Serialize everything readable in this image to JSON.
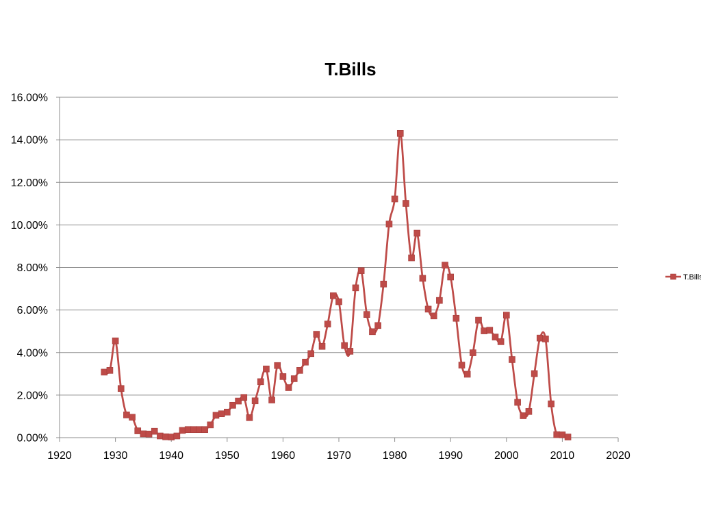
{
  "chart_data": {
    "type": "line",
    "title": "T.Bills",
    "xlabel": "",
    "ylabel": "",
    "xlim": [
      1920,
      2020
    ],
    "ylim": [
      0,
      16
    ],
    "x_ticks": [
      "1920",
      "1930",
      "1940",
      "1950",
      "1960",
      "1970",
      "1980",
      "1990",
      "2000",
      "2010",
      "2020"
    ],
    "y_ticks": [
      "0.00%",
      "2.00%",
      "4.00%",
      "6.00%",
      "8.00%",
      "10.00%",
      "12.00%",
      "14.00%",
      "16.00%"
    ],
    "grid": "horizontal",
    "legend": {
      "position": "right",
      "entries": [
        "T.Bills"
      ]
    },
    "series": [
      {
        "name": "T.Bills",
        "color": "#be4b48",
        "x": [
          1928,
          1929,
          1930,
          1931,
          1932,
          1933,
          1934,
          1935,
          1936,
          1937,
          1938,
          1939,
          1940,
          1941,
          1942,
          1943,
          1944,
          1945,
          1946,
          1947,
          1948,
          1949,
          1950,
          1951,
          1952,
          1953,
          1954,
          1955,
          1956,
          1957,
          1958,
          1959,
          1960,
          1961,
          1962,
          1963,
          1964,
          1965,
          1966,
          1967,
          1968,
          1969,
          1970,
          1971,
          1972,
          1973,
          1974,
          1975,
          1976,
          1977,
          1978,
          1979,
          1980,
          1981,
          1982,
          1983,
          1984,
          1985,
          1986,
          1987,
          1988,
          1989,
          1990,
          1991,
          1992,
          1993,
          1994,
          1995,
          1996,
          1997,
          1998,
          1999,
          2000,
          2001,
          2002,
          2003,
          2004,
          2005,
          2006,
          2007,
          2008,
          2009,
          2010,
          2011
        ],
        "values": [
          3.08,
          3.16,
          4.55,
          2.31,
          1.07,
          0.96,
          0.32,
          0.18,
          0.17,
          0.3,
          0.08,
          0.04,
          0.03,
          0.08,
          0.34,
          0.38,
          0.38,
          0.38,
          0.38,
          0.6,
          1.05,
          1.12,
          1.2,
          1.52,
          1.72,
          1.89,
          0.94,
          1.73,
          2.63,
          3.23,
          1.77,
          3.39,
          2.87,
          2.35,
          2.77,
          3.16,
          3.55,
          3.95,
          4.86,
          4.29,
          5.34,
          6.67,
          6.39,
          4.33,
          4.06,
          7.04,
          7.85,
          5.79,
          4.98,
          5.27,
          7.22,
          10.04,
          11.22,
          14.3,
          11.01,
          8.45,
          9.61,
          7.49,
          6.04,
          5.72,
          6.45,
          8.11,
          7.55,
          5.61,
          3.41,
          2.98,
          3.99,
          5.52,
          5.02,
          5.05,
          4.73,
          4.51,
          5.76,
          3.67,
          1.66,
          1.03,
          1.23,
          3.01,
          4.68,
          4.64,
          1.59,
          0.14,
          0.13,
          0.03
        ]
      }
    ]
  }
}
